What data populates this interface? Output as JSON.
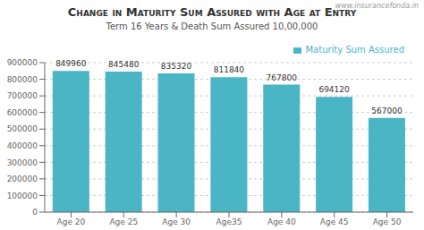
{
  "chart_data": {
    "type": "bar",
    "title": "Change in Maturity Sum Assured with Age at Entry",
    "subtitle": "Term 16 Years  &  Death Sum Assured 10,00,000",
    "annotations": [
      "www.insurancefonda.in"
    ],
    "categories": [
      "Age 20",
      "Age 25",
      "Age 30",
      "Age35",
      "Age 40",
      "Age 45",
      "Age 50"
    ],
    "series": [
      {
        "name": "Maturity Sum Assured",
        "color": "#4ab5c4",
        "values": [
          849960,
          845480,
          835320,
          811840,
          767800,
          694120,
          567000
        ]
      }
    ],
    "ylim": [
      0,
      900000
    ],
    "yticks": [
      0,
      100000,
      200000,
      300000,
      400000,
      500000,
      600000,
      700000,
      800000,
      900000
    ],
    "grid": true,
    "legend": "upper right",
    "data_labels": true
  }
}
